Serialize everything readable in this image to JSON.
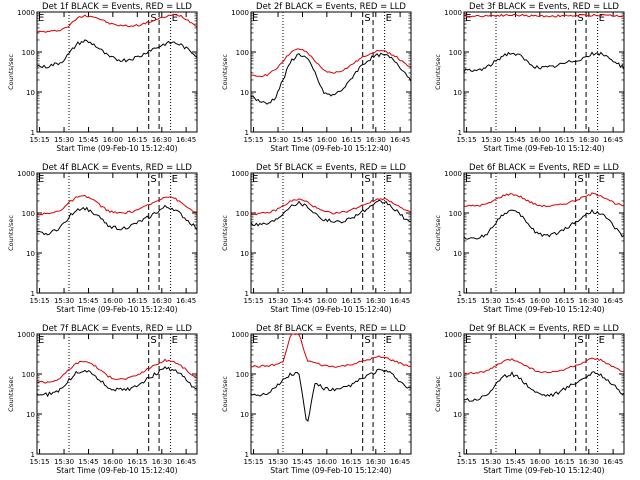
{
  "chart_data": [
    {
      "type": "line",
      "title": "Det 1f BLACK = Events, RED = LLD",
      "xlabel": "Start Time (09-Feb-10 15:12:40)",
      "ylabel": "Counts/sec",
      "yscale": "log",
      "ylim": [
        1,
        1000
      ],
      "x_ticks": [
        "15:15",
        "15:30",
        "15:45",
        "16:00",
        "16:15",
        "16:30",
        "16:45"
      ],
      "y_ticks": [
        "1",
        "10",
        "100",
        "1000"
      ],
      "markers": [
        "E",
        "S",
        "E"
      ],
      "series": [
        {
          "color": "#000000",
          "values": [
            45,
            42,
            48,
            55,
            90,
            160,
            190,
            160,
            110,
            75,
            65,
            62,
            70,
            80,
            110,
            130,
            160,
            175,
            150,
            110,
            80
          ]
        },
        {
          "color": "#dd0000",
          "values": [
            320,
            320,
            330,
            360,
            450,
            700,
            820,
            780,
            650,
            520,
            470,
            450,
            450,
            480,
            560,
            650,
            760,
            850,
            800,
            600,
            430
          ]
        }
      ]
    },
    {
      "type": "line",
      "title": "Det 2f BLACK = Events, RED = LLD",
      "xlabel": "Start Time (09-Feb-10 15:12:40)",
      "ylabel": "Counts/sec",
      "yscale": "log",
      "ylim": [
        1,
        1000
      ],
      "x_ticks": [
        "15:15",
        "15:30",
        "15:45",
        "16:00",
        "16:15",
        "16:30",
        "16:45"
      ],
      "y_ticks": [
        "1",
        "10",
        "100",
        "1000"
      ],
      "markers": [
        "E",
        "S",
        "E"
      ],
      "series": [
        {
          "color": "#000000",
          "values": [
            8,
            6,
            5,
            7,
            20,
            60,
            90,
            70,
            30,
            10,
            8,
            10,
            15,
            30,
            50,
            70,
            85,
            80,
            60,
            35,
            20
          ]
        },
        {
          "color": "#dd0000",
          "values": [
            25,
            25,
            27,
            35,
            60,
            100,
            120,
            100,
            60,
            35,
            30,
            32,
            40,
            55,
            75,
            95,
            110,
            100,
            80,
            55,
            40
          ]
        }
      ]
    },
    {
      "type": "line",
      "title": "Det 3f BLACK = Events, RED = LLD",
      "xlabel": "Start Time (09-Feb-10 15:12:40)",
      "ylabel": "Counts/sec",
      "yscale": "log",
      "ylim": [
        1,
        1000
      ],
      "x_ticks": [
        "15:15",
        "15:30",
        "15:45",
        "16:00",
        "16:15",
        "16:30",
        "16:45"
      ],
      "y_ticks": [
        "1",
        "10",
        "100",
        "1000"
      ],
      "markers": [
        "E",
        "S",
        "E"
      ],
      "series": [
        {
          "color": "#000000",
          "values": [
            35,
            33,
            36,
            42,
            60,
            85,
            95,
            80,
            55,
            42,
            40,
            42,
            48,
            55,
            62,
            72,
            88,
            90,
            75,
            55,
            40
          ]
        },
        {
          "color": "#dd0000",
          "values": [
            800,
            790,
            800,
            810,
            820,
            830,
            840,
            830,
            810,
            800,
            790,
            790,
            800,
            810,
            815,
            820,
            830,
            840,
            830,
            810,
            800
          ]
        }
      ]
    },
    {
      "type": "line",
      "title": "Det 4f BLACK = Events, RED = LLD",
      "xlabel": "Start Time (09-Feb-10 15:12:40)",
      "ylabel": "Counts/sec",
      "yscale": "log",
      "ylim": [
        1,
        1000
      ],
      "x_ticks": [
        "15:15",
        "15:30",
        "15:45",
        "16:00",
        "16:15",
        "16:30",
        "16:45"
      ],
      "y_ticks": [
        "1",
        "10",
        "100",
        "1000"
      ],
      "markers": [
        "E",
        "S",
        "E"
      ],
      "series": [
        {
          "color": "#000000",
          "values": [
            32,
            30,
            34,
            45,
            80,
            125,
            130,
            105,
            70,
            48,
            42,
            42,
            50,
            62,
            80,
            105,
            140,
            130,
            90,
            60,
            42
          ]
        },
        {
          "color": "#dd0000",
          "values": [
            95,
            95,
            100,
            120,
            180,
            250,
            260,
            220,
            150,
            110,
            100,
            100,
            110,
            130,
            160,
            200,
            260,
            250,
            180,
            130,
            100
          ]
        }
      ]
    },
    {
      "type": "line",
      "title": "Det 5f BLACK = Events, RED = LLD",
      "xlabel": "Start Time (09-Feb-10 15:12:40)",
      "ylabel": "Counts/sec",
      "yscale": "log",
      "ylim": [
        1,
        1000
      ],
      "x_ticks": [
        "15:15",
        "15:30",
        "15:45",
        "16:00",
        "16:15",
        "16:30",
        "16:45"
      ],
      "y_ticks": [
        "1",
        "10",
        "100",
        "1000"
      ],
      "markers": [
        "E",
        "S",
        "E"
      ],
      "series": [
        {
          "color": "#000000",
          "values": [
            55,
            52,
            55,
            65,
            100,
            160,
            180,
            150,
            100,
            70,
            62,
            60,
            68,
            85,
            110,
            140,
            190,
            180,
            120,
            80,
            55
          ]
        },
        {
          "color": "#dd0000",
          "values": [
            95,
            95,
            100,
            115,
            150,
            200,
            220,
            190,
            140,
            110,
            100,
            100,
            110,
            130,
            160,
            190,
            230,
            220,
            170,
            125,
            100
          ]
        }
      ]
    },
    {
      "type": "line",
      "title": "Det 6f BLACK = Events, RED = LLD",
      "xlabel": "Start Time (09-Feb-10 15:12:40)",
      "ylabel": "Counts/sec",
      "yscale": "log",
      "ylim": [
        1,
        1000
      ],
      "x_ticks": [
        "15:15",
        "15:30",
        "15:45",
        "16:00",
        "16:15",
        "16:30",
        "16:45"
      ],
      "y_ticks": [
        "1",
        "10",
        "100",
        "1000"
      ],
      "markers": [
        "E",
        "S",
        "E"
      ],
      "series": [
        {
          "color": "#000000",
          "values": [
            25,
            22,
            24,
            32,
            60,
            100,
            115,
            90,
            55,
            32,
            28,
            28,
            34,
            45,
            60,
            85,
            110,
            100,
            70,
            40,
            25
          ]
        },
        {
          "color": "#dd0000",
          "values": [
            150,
            150,
            155,
            170,
            220,
            280,
            300,
            260,
            200,
            160,
            150,
            150,
            160,
            180,
            210,
            250,
            300,
            280,
            220,
            170,
            150
          ]
        }
      ]
    },
    {
      "type": "line",
      "title": "Det 7f BLACK = Events, RED = LLD",
      "xlabel": "Start Time (09-Feb-10 15:12:40)",
      "ylabel": "Counts/sec",
      "yscale": "log",
      "ylim": [
        1,
        1000
      ],
      "x_ticks": [
        "15:15",
        "15:30",
        "15:45",
        "16:00",
        "16:15",
        "16:30",
        "16:45"
      ],
      "y_ticks": [
        "1",
        "10",
        "100",
        "1000"
      ],
      "markers": [
        "E",
        "S",
        "E"
      ],
      "series": [
        {
          "color": "#000000",
          "values": [
            32,
            30,
            33,
            42,
            70,
            110,
            125,
            100,
            65,
            45,
            40,
            40,
            46,
            60,
            80,
            105,
            140,
            130,
            95,
            60,
            40
          ]
        },
        {
          "color": "#dd0000",
          "values": [
            65,
            62,
            66,
            80,
            130,
            190,
            210,
            175,
            120,
            85,
            75,
            75,
            85,
            105,
            140,
            175,
            220,
            210,
            160,
            110,
            75
          ]
        }
      ]
    },
    {
      "type": "line",
      "title": "Det 8f BLACK = Events, RED = LLD",
      "xlabel": "Start Time (09-Feb-10 15:12:40)",
      "ylabel": "Counts/sec",
      "yscale": "log",
      "ylim": [
        1,
        1000
      ],
      "x_ticks": [
        "15:15",
        "15:30",
        "15:45",
        "16:00",
        "16:15",
        "16:30",
        "16:45"
      ],
      "y_ticks": [
        "1",
        "10",
        "100",
        "1000"
      ],
      "markers": [
        "E",
        "S",
        "E"
      ],
      "series": [
        {
          "color": "#000000",
          "values": [
            32,
            30,
            34,
            45,
            70,
            100,
            105,
            5,
            60,
            45,
            40,
            40,
            48,
            60,
            80,
            100,
            125,
            115,
            85,
            55,
            40
          ]
        },
        {
          "color": "#dd0000",
          "values": [
            155,
            155,
            160,
            170,
            200,
            1000,
            1000,
            220,
            190,
            165,
            155,
            155,
            165,
            185,
            210,
            240,
            270,
            250,
            210,
            175,
            155
          ]
        }
      ]
    },
    {
      "type": "line",
      "title": "Det 9f BLACK = Events, RED = LLD",
      "xlabel": "Start Time (09-Feb-10 15:12:40)",
      "ylabel": "Counts/sec",
      "yscale": "log",
      "ylim": [
        1,
        1000
      ],
      "x_ticks": [
        "15:15",
        "15:30",
        "15:45",
        "16:00",
        "16:15",
        "16:30",
        "16:45"
      ],
      "y_ticks": [
        "1",
        "10",
        "100",
        "1000"
      ],
      "markers": [
        "E",
        "S",
        "E"
      ],
      "series": [
        {
          "color": "#000000",
          "values": [
            24,
            22,
            25,
            32,
            55,
            85,
            100,
            80,
            50,
            35,
            30,
            30,
            36,
            48,
            62,
            80,
            105,
            100,
            70,
            45,
            30
          ]
        },
        {
          "color": "#dd0000",
          "values": [
            105,
            105,
            110,
            120,
            160,
            210,
            230,
            200,
            150,
            120,
            110,
            110,
            120,
            140,
            165,
            195,
            240,
            230,
            180,
            135,
            110
          ]
        }
      ]
    }
  ]
}
